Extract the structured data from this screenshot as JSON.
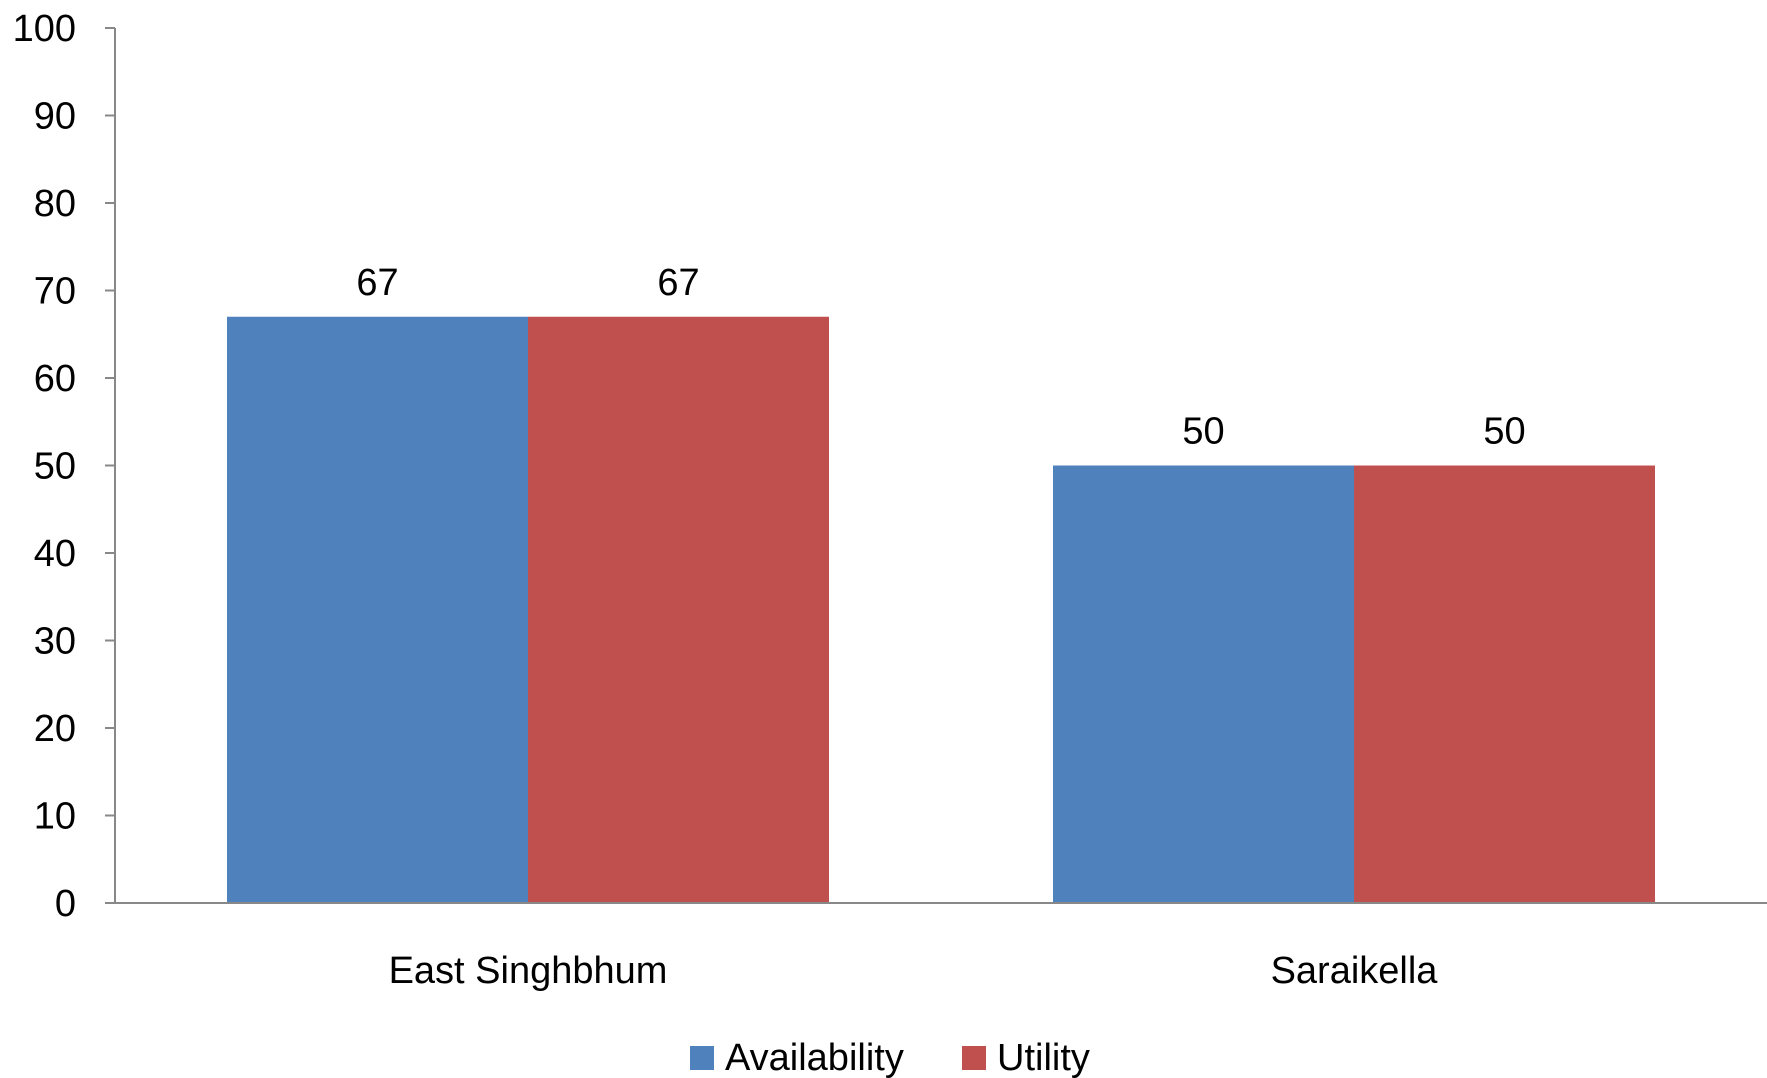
{
  "chart_data": {
    "type": "bar",
    "categories": [
      "East Singhbhum",
      "Saraikella"
    ],
    "series": [
      {
        "name": "Availability",
        "values": [
          67,
          50
        ],
        "color": "#4F81BD"
      },
      {
        "name": "Utility",
        "values": [
          67,
          50
        ],
        "color": "#C0504D"
      }
    ],
    "ylim": [
      0,
      100
    ],
    "yticks": [
      0,
      10,
      20,
      30,
      40,
      50,
      60,
      70,
      80,
      90,
      100
    ],
    "grid": false,
    "data_labels": true,
    "legend_position": "bottom",
    "axis_color": "#888888"
  }
}
